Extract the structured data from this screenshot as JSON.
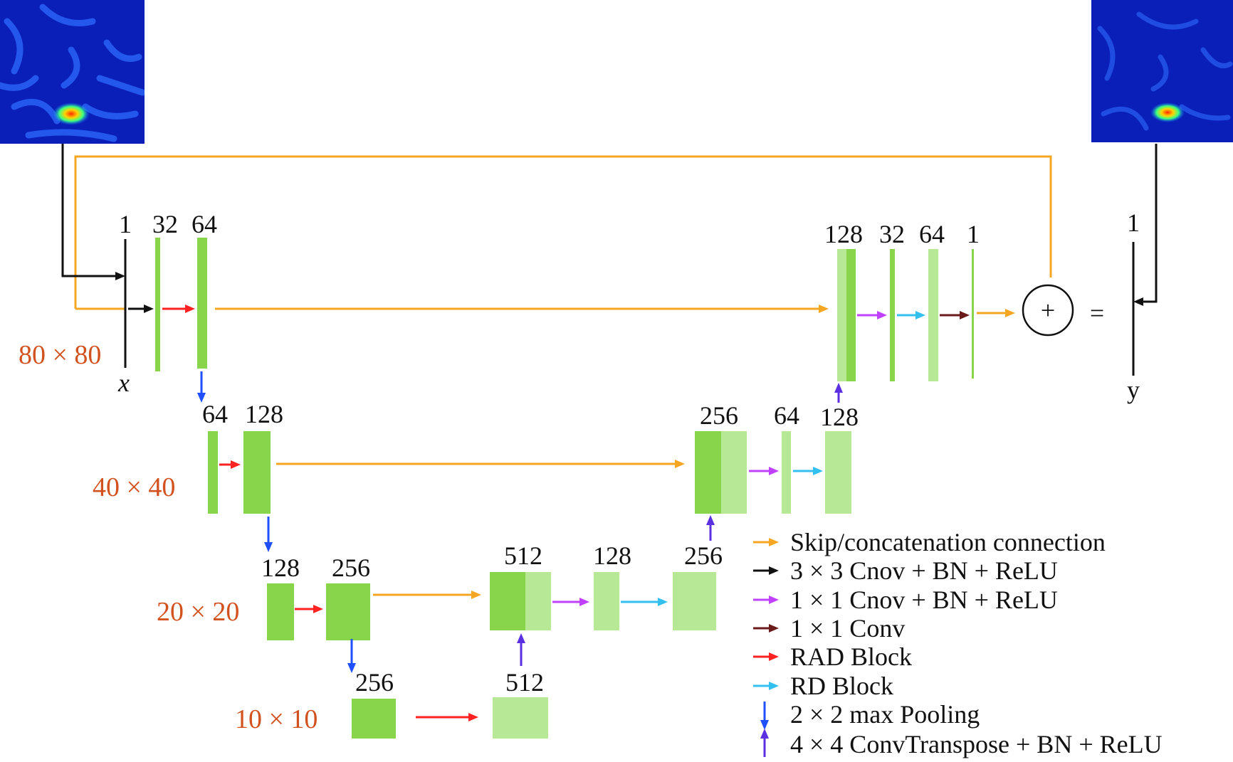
{
  "colors": {
    "skip": "#f5a623",
    "conv3": "#111111",
    "conv1_bn": "#c040ff",
    "conv1": "#6b1a1a",
    "rad": "#ff2222",
    "rd": "#33c0f0",
    "pool": "#1f4fff",
    "convT": "#5a30e0",
    "block_dark": "#88d44a",
    "block_light": "#b6e895",
    "resolution_text": "#d2521f"
  },
  "images": {
    "input_icon": "heatmap-input",
    "output_icon": "heatmap-output"
  },
  "resolutions": {
    "r80": "80 × 80",
    "r40": "40 × 40",
    "r20": "20 × 20",
    "r10": "10 × 10"
  },
  "labels": {
    "input_var": "x",
    "output_var": "y",
    "plus": "+",
    "equals": "="
  },
  "channels": {
    "in_1": "1",
    "enc1_32": "32",
    "enc1_64": "64",
    "enc2_64": "64",
    "enc2_128": "128",
    "enc3_128": "128",
    "enc3_256": "256",
    "bott_256": "256",
    "bott_512": "512",
    "dec3_512": "512",
    "dec3_128": "128",
    "dec3_256": "256",
    "dec2_256": "256",
    "dec2_64": "64",
    "dec2_128": "128",
    "dec1_128": "128",
    "dec1_32": "32",
    "dec1_64": "64",
    "dec1_1": "1",
    "out_1": "1"
  },
  "legend": [
    {
      "label": "Skip/concatenation connection",
      "icon": "skip-arrow-icon"
    },
    {
      "label": "3 × 3  Cnov + BN + ReLU",
      "icon": "conv3-arrow-icon"
    },
    {
      "label": "1 × 1  Cnov + BN + ReLU",
      "icon": "conv1-bn-arrow-icon"
    },
    {
      "label": "1 × 1  Conv",
      "icon": "conv1-arrow-icon"
    },
    {
      "label": "RAD  Block",
      "icon": "rad-arrow-icon"
    },
    {
      "label": "RD  Block",
      "icon": "rd-arrow-icon"
    },
    {
      "label": "2 × 2  max Pooling",
      "icon": "pool-arrow-icon"
    },
    {
      "label": "4 × 4 ConvTranspose + BN + ReLU",
      "icon": "convT-arrow-icon"
    }
  ]
}
